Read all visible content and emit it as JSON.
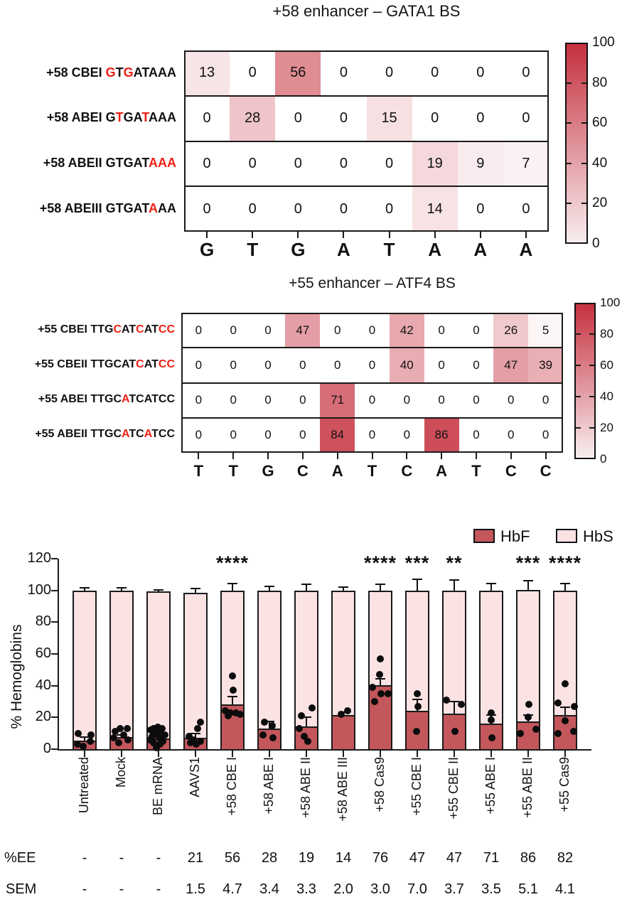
{
  "colors": {
    "heat_max": "#c5313f",
    "heat_min": "#ffffff",
    "colorbar_bottom": "#f8eef0",
    "hbf": "#c3575c",
    "hbs": "#fbe3e4",
    "sequence_red": "#ee2013",
    "line": "#1a1a1a"
  },
  "chart_data": [
    {
      "id": "heatmap-58",
      "type": "heatmap",
      "title": "+58 enhancer – GATA1 BS",
      "x_labels": [
        "G",
        "T",
        "G",
        "A",
        "T",
        "A",
        "A",
        "A"
      ],
      "scale": [
        0,
        100
      ],
      "colorbar_ticks": [
        100,
        80,
        60,
        40,
        20,
        0
      ],
      "rows": [
        {
          "prefix": "+58 CBEI",
          "seq": "GTGATAAA",
          "red_positions": [
            1,
            3
          ],
          "values": [
            13,
            0,
            56,
            0,
            0,
            0,
            0,
            0
          ]
        },
        {
          "prefix": "+58 ABEI",
          "seq": "GTGATAAA",
          "red_positions": [
            2,
            5
          ],
          "values": [
            0,
            28,
            0,
            0,
            15,
            0,
            0,
            0
          ]
        },
        {
          "prefix": "+58 ABEII",
          "seq": "GTGATAAA",
          "red_positions": [
            6,
            7,
            8
          ],
          "values": [
            0,
            0,
            0,
            0,
            0,
            19,
            9,
            7
          ]
        },
        {
          "prefix": "+58 ABEIII",
          "seq": "GTGATAAA",
          "red_positions": [
            6
          ],
          "values": [
            0,
            0,
            0,
            0,
            0,
            14,
            0,
            0
          ]
        }
      ]
    },
    {
      "id": "heatmap-55",
      "type": "heatmap",
      "title": "+55 enhancer – ATF4 BS",
      "x_labels": [
        "T",
        "T",
        "G",
        "C",
        "A",
        "T",
        "C",
        "A",
        "T",
        "C",
        "C"
      ],
      "scale": [
        0,
        100
      ],
      "colorbar_ticks": [
        100,
        80,
        60,
        40,
        20,
        0
      ],
      "rows": [
        {
          "prefix": "+55 CBEI",
          "seq": "TTGCATCATCC",
          "red_positions": [
            4,
            7,
            10,
            11
          ],
          "values": [
            0,
            0,
            0,
            47,
            0,
            0,
            42,
            0,
            0,
            26,
            5
          ]
        },
        {
          "prefix": "+55 CBEII",
          "seq": "TTGCATCATCC",
          "red_positions": [
            7,
            10,
            11
          ],
          "values": [
            0,
            0,
            0,
            0,
            0,
            0,
            40,
            0,
            0,
            47,
            39
          ]
        },
        {
          "prefix": "+55 ABEI",
          "seq": "TTGCATCATCC",
          "red_positions": [
            5
          ],
          "values": [
            0,
            0,
            0,
            0,
            71,
            0,
            0,
            0,
            0,
            0,
            0
          ]
        },
        {
          "prefix": "+55 ABEII",
          "seq": "TTGCATCATCC",
          "red_positions": [
            5,
            8
          ],
          "values": [
            0,
            0,
            0,
            0,
            84,
            0,
            0,
            86,
            0,
            0,
            0
          ]
        }
      ]
    },
    {
      "id": "hemoglobin-stacked-bar",
      "type": "stacked_bar",
      "ylabel": "% Hemoglobins",
      "ylim": [
        0,
        120
      ],
      "yticks": [
        0,
        20,
        40,
        60,
        80,
        100,
        120
      ],
      "legend": [
        {
          "label": "HbF"
        },
        {
          "label": "HbS"
        }
      ],
      "categories": [
        "Untreated",
        "Mock",
        "BE mRNA",
        "AAVS1",
        "+58 CBE I",
        "+58 ABE I",
        "+58 ABE II",
        "+58 ABE III",
        "+58 Cas9",
        "+55 CBE I",
        "+55 CBE II",
        "+55 ABE I",
        "+55 ABE II",
        "+55 Cas9"
      ],
      "bars": [
        {
          "hbf": 5.5,
          "hbf_err": 2,
          "total": 100,
          "total_err": 1.5,
          "stars": "",
          "points": [
            [
              10,
              -9
            ],
            [
              9,
              9
            ],
            [
              5,
              8
            ],
            [
              3,
              -10
            ],
            [
              2,
              -2
            ]
          ]
        },
        {
          "hbf": 7.5,
          "hbf_err": 1.5,
          "total": 100,
          "total_err": 1.5,
          "stars": "",
          "points": [
            [
              13,
              -2
            ],
            [
              13,
              8
            ],
            [
              11,
              -9
            ],
            [
              9,
              3
            ],
            [
              7,
              -11
            ],
            [
              6,
              9
            ],
            [
              4,
              -4
            ]
          ]
        },
        {
          "hbf": 6.5,
          "hbf_err": 1,
          "total": 99.5,
          "total_err": 1,
          "stars": "",
          "points": [
            [
              14,
              -1
            ],
            [
              13,
              -7
            ],
            [
              13,
              5
            ],
            [
              12,
              -11
            ],
            [
              11,
              2
            ],
            [
              10,
              -4
            ],
            [
              9,
              9
            ],
            [
              8,
              -9
            ],
            [
              7,
              1
            ],
            [
              6,
              -12
            ],
            [
              5,
              6
            ],
            [
              4,
              -7
            ],
            [
              3,
              2
            ],
            [
              1,
              -3
            ]
          ]
        },
        {
          "hbf": 7,
          "hbf_err": 3,
          "total": 98.5,
          "total_err": 2.5,
          "stars": "",
          "points": [
            [
              17,
              7
            ],
            [
              13,
              3
            ],
            [
              8,
              -9
            ],
            [
              6,
              -3
            ],
            [
              5,
              7
            ],
            [
              4,
              -7
            ],
            [
              3,
              1
            ]
          ]
        },
        {
          "hbf": 28,
          "hbf_err": 5,
          "total": 100,
          "total_err": 4.5,
          "stars": "****",
          "points": [
            [
              46,
              0
            ],
            [
              37,
              1
            ],
            [
              24,
              -10
            ],
            [
              23,
              -3
            ],
            [
              23,
              5
            ],
            [
              22,
              11
            ],
            [
              21,
              -6
            ]
          ]
        },
        {
          "hbf": 13,
          "hbf_err": 4.5,
          "total": 100,
          "total_err": 2.5,
          "stars": "",
          "points": [
            [
              17,
              -7
            ],
            [
              15,
              4
            ],
            [
              9,
              -9
            ],
            [
              7,
              5
            ]
          ]
        },
        {
          "hbf": 14.5,
          "hbf_err": 5.5,
          "total": 100,
          "total_err": 4,
          "stars": "",
          "points": [
            [
              26,
              8
            ],
            [
              21,
              -7
            ],
            [
              13,
              -10
            ],
            [
              8,
              -3
            ],
            [
              5,
              2
            ]
          ]
        },
        {
          "hbf": 21.5,
          "hbf_err": 2,
          "total": 100,
          "total_err": 2,
          "stars": "",
          "points": [
            [
              24,
              6
            ],
            [
              22,
              -3
            ]
          ]
        },
        {
          "hbf": 40.5,
          "hbf_err": 4,
          "total": 100,
          "total_err": 4,
          "stars": "****",
          "points": [
            [
              57,
              0
            ],
            [
              47,
              -1
            ],
            [
              39,
              -11
            ],
            [
              35,
              1
            ],
            [
              35,
              11
            ],
            [
              30,
              -8
            ]
          ]
        },
        {
          "hbf": 24,
          "hbf_err": 7.5,
          "total": 100,
          "total_err": 7,
          "stars": "***",
          "points": [
            [
              35,
              0
            ],
            [
              27,
              1
            ],
            [
              11,
              -1
            ]
          ]
        },
        {
          "hbf": 22.5,
          "hbf_err": 7.5,
          "total": 100,
          "total_err": 6.5,
          "stars": "**",
          "points": [
            [
              31,
              -11
            ],
            [
              28,
              10
            ],
            [
              11,
              1
            ]
          ]
        },
        {
          "hbf": 16,
          "hbf_err": 5.5,
          "total": 100,
          "total_err": 4.5,
          "stars": "",
          "points": [
            [
              23,
              0
            ],
            [
              18.5,
              0
            ],
            [
              7,
              1
            ]
          ]
        },
        {
          "hbf": 17.5,
          "hbf_err": 4,
          "total": 100.5,
          "total_err": 5.5,
          "stars": "***",
          "points": [
            [
              28,
              1
            ],
            [
              20,
              0
            ],
            [
              12.5,
              11
            ],
            [
              10,
              -11
            ]
          ]
        },
        {
          "hbf": 21.5,
          "hbf_err": 5,
          "total": 100,
          "total_err": 4.5,
          "stars": "****",
          "points": [
            [
              41,
              0
            ],
            [
              29,
              -10
            ],
            [
              27,
              13
            ],
            [
              18,
              0
            ],
            [
              11,
              12
            ],
            [
              10,
              -10
            ]
          ]
        }
      ],
      "table": [
        {
          "header": "%EE",
          "values": [
            "-",
            "-",
            "-",
            "21",
            "56",
            "28",
            "19",
            "14",
            "76",
            "47",
            "47",
            "71",
            "86",
            "82"
          ]
        },
        {
          "header": "SEM",
          "values": [
            "-",
            "-",
            "-",
            "1.5",
            "4.7",
            "3.4",
            "3.3",
            "2.0",
            "3.0",
            "7.0",
            "3.7",
            "3.5",
            "5.1",
            "4.1"
          ]
        }
      ]
    }
  ]
}
